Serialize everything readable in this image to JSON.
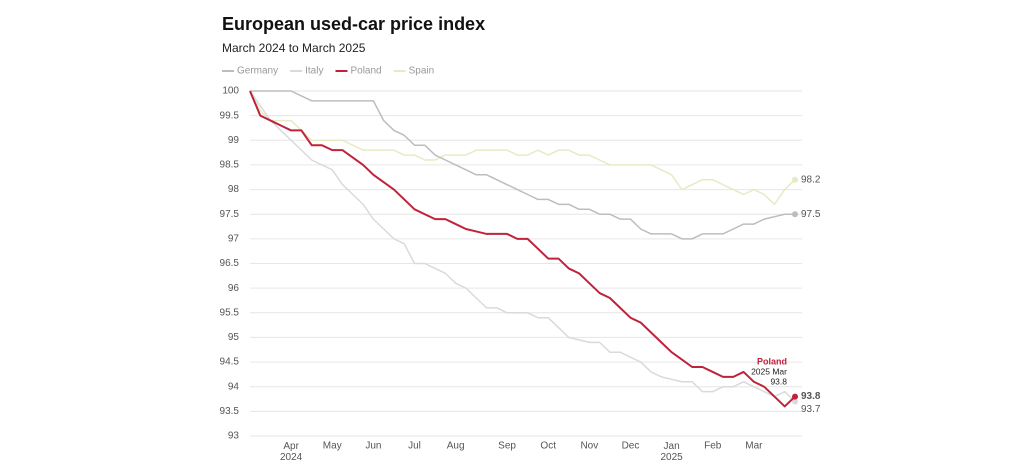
{
  "chart_data": {
    "type": "line",
    "title": "European used-car price index",
    "subtitle": "March 2024 to March 2025",
    "categories": [
      null,
      null,
      null,
      null,
      "Apr 2024",
      null,
      null,
      null,
      "May",
      null,
      null,
      null,
      "Jun",
      null,
      null,
      null,
      "Jul",
      null,
      null,
      null,
      "Aug",
      null,
      null,
      null,
      null,
      "Sep",
      null,
      null,
      null,
      "Oct",
      null,
      null,
      null,
      "Nov",
      null,
      null,
      null,
      "Dec",
      null,
      null,
      null,
      "Jan 2025",
      null,
      null,
      null,
      "Feb",
      null,
      null,
      null,
      "Mar",
      null,
      null,
      null,
      null
    ],
    "ylim": [
      93,
      100
    ],
    "yticks": [
      93,
      93.5,
      94,
      94.5,
      95,
      95.5,
      96,
      96.5,
      97,
      97.5,
      98,
      98.5,
      99,
      99.5,
      100
    ],
    "grid": true,
    "annotation": {
      "label": "2025 Mar"
    },
    "series": [
      {
        "name": "Germany",
        "color": "#bdbdbd",
        "values": [
          100,
          100,
          100,
          100,
          100,
          99.9,
          99.8,
          99.8,
          99.8,
          99.8,
          99.8,
          99.8,
          99.8,
          99.4,
          99.2,
          99.1,
          98.9,
          98.9,
          98.7,
          98.6,
          98.5,
          98.4,
          98.3,
          98.3,
          98.2,
          98.1,
          98.0,
          97.9,
          97.8,
          97.8,
          97.7,
          97.7,
          97.6,
          97.6,
          97.5,
          97.5,
          97.4,
          97.4,
          97.2,
          97.1,
          97.1,
          97.1,
          97.0,
          97.0,
          97.1,
          97.1,
          97.1,
          97.2,
          97.3,
          97.3,
          97.4,
          97.45,
          97.5,
          97.5
        ]
      },
      {
        "name": "Italy",
        "color": "#dadada",
        "values": [
          100,
          99.7,
          99.4,
          99.2,
          99.0,
          98.8,
          98.6,
          98.5,
          98.4,
          98.1,
          97.9,
          97.7,
          97.4,
          97.2,
          97.0,
          96.9,
          96.5,
          96.5,
          96.4,
          96.3,
          96.1,
          96.0,
          95.8,
          95.6,
          95.6,
          95.5,
          95.5,
          95.5,
          95.4,
          95.4,
          95.2,
          95.0,
          94.95,
          94.9,
          94.9,
          94.7,
          94.7,
          94.6,
          94.5,
          94.3,
          94.2,
          94.15,
          94.1,
          94.1,
          93.9,
          93.9,
          94.0,
          94.0,
          94.1,
          94.0,
          93.9,
          93.8,
          93.9,
          93.7
        ]
      },
      {
        "name": "Poland",
        "color": "#c0223b",
        "values": [
          100,
          99.5,
          99.4,
          99.3,
          99.2,
          99.2,
          98.9,
          98.9,
          98.8,
          98.8,
          98.65,
          98.5,
          98.3,
          98.15,
          98.0,
          97.8,
          97.6,
          97.5,
          97.4,
          97.4,
          97.3,
          97.2,
          97.15,
          97.1,
          97.1,
          97.1,
          97.0,
          97.0,
          96.8,
          96.6,
          96.6,
          96.4,
          96.3,
          96.1,
          95.9,
          95.8,
          95.6,
          95.4,
          95.3,
          95.1,
          94.9,
          94.7,
          94.55,
          94.4,
          94.4,
          94.3,
          94.2,
          94.2,
          94.3,
          94.1,
          94.0,
          93.8,
          93.6,
          93.8
        ]
      },
      {
        "name": "Spain",
        "color": "#e6ebc4",
        "values": [
          100,
          99.6,
          99.4,
          99.4,
          99.4,
          99.2,
          99.0,
          99.0,
          99.0,
          99.0,
          98.9,
          98.8,
          98.8,
          98.8,
          98.8,
          98.7,
          98.7,
          98.6,
          98.6,
          98.7,
          98.7,
          98.7,
          98.8,
          98.8,
          98.8,
          98.8,
          98.7,
          98.7,
          98.8,
          98.7,
          98.8,
          98.8,
          98.7,
          98.7,
          98.6,
          98.5,
          98.5,
          98.5,
          98.5,
          98.5,
          98.4,
          98.3,
          98.0,
          98.1,
          98.2,
          98.2,
          98.1,
          98.0,
          97.9,
          98.0,
          97.9,
          97.7,
          98.0,
          98.2
        ]
      }
    ]
  }
}
